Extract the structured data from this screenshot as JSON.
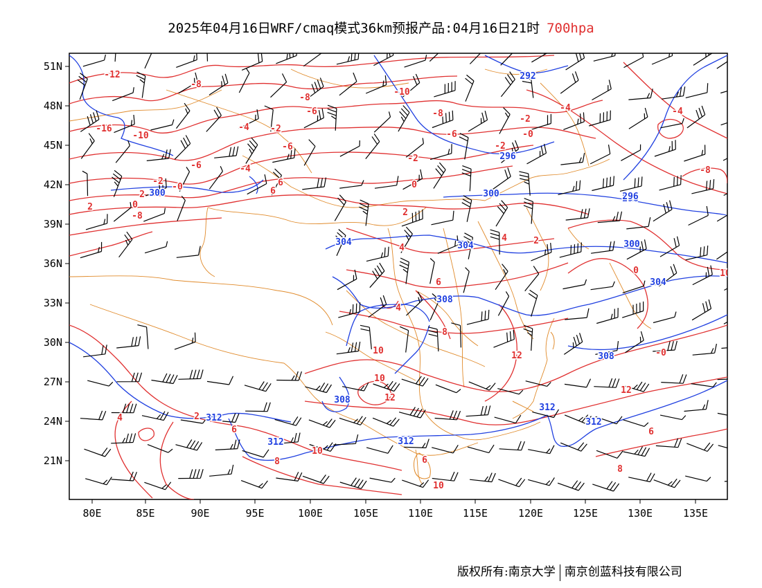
{
  "header": {
    "title": "2025年04月16日WRF/cmaq模式36km预报产品:04月16日21时",
    "level": "700hpa"
  },
  "footer": {
    "credit_left": "版权所有:南京大学",
    "credit_right": "南京创蓝科技有限公司"
  },
  "colors": {
    "temperature": "#e03030",
    "geopotential": "#2040e0",
    "border": "#e08a2a",
    "wind": "#000000"
  },
  "map": {
    "lon_labels": [
      "80E",
      "85E",
      "90E",
      "95E",
      "100E",
      "105E",
      "110E",
      "115E",
      "120E",
      "125E",
      "130E",
      "135E"
    ],
    "lat_labels": [
      "51N",
      "48N",
      "45N",
      "42N",
      "39N",
      "36N",
      "33N",
      "30N",
      "27N",
      "24N",
      "21N"
    ],
    "temperature_labels": [
      "-12",
      "-8",
      "-16",
      "-10",
      "-8",
      "-6",
      "-6",
      "-10",
      "-8",
      "-6",
      "-4",
      "-2",
      "-2",
      "-6",
      "-2",
      "-0",
      "-2",
      "-4",
      "-4",
      "-0",
      "0",
      "-2",
      "2",
      "0",
      "2",
      "4",
      "6",
      "6",
      "4",
      "2",
      "2",
      "-4",
      "-8",
      "-8",
      "0",
      "6",
      "8",
      "4",
      "10",
      "12",
      "10",
      "12",
      "10",
      "8",
      "6",
      "4",
      "2",
      "-0",
      "10",
      "12",
      "6",
      "10",
      "8",
      "6"
    ],
    "geopotential_labels": [
      "292",
      "296",
      "300",
      "300",
      "296",
      "304",
      "304",
      "300",
      "308",
      "304",
      "308",
      "308",
      "312",
      "312",
      "312",
      "312",
      "312",
      "296"
    ],
    "icons": [
      "wind-barb-icon"
    ]
  }
}
